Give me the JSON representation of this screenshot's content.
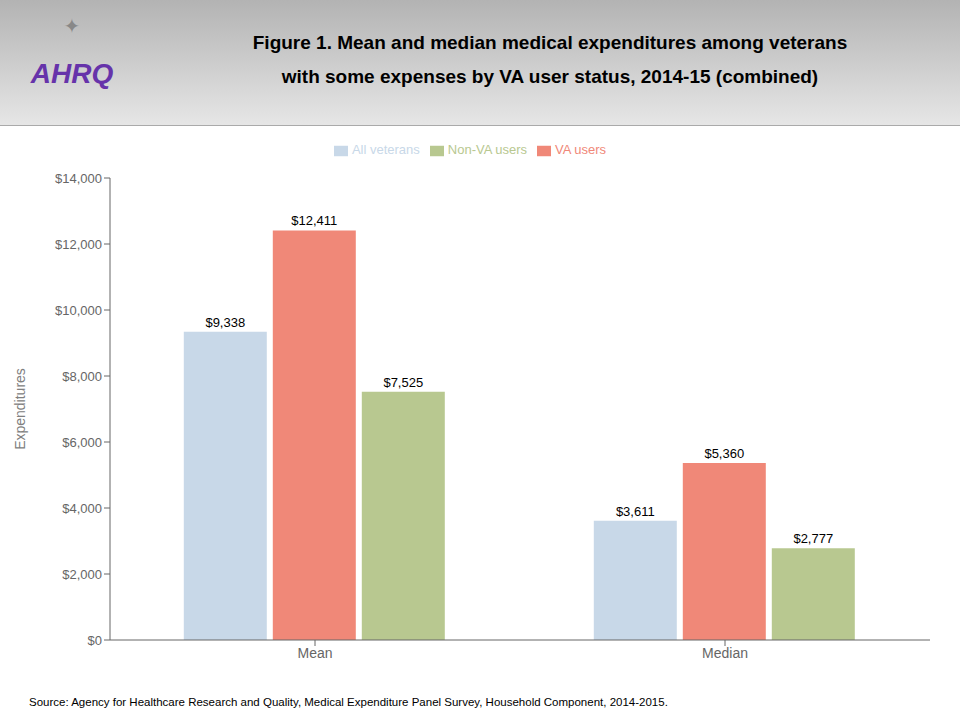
{
  "chart_data": {
    "type": "bar",
    "title": "Figure 1. Mean and median medical expenditures among veterans",
    "subtitle": "with some expenses by VA user status, 2014-15 (combined)",
    "categories": [
      "Mean",
      "Median"
    ],
    "series": [
      {
        "name": "All veterans",
        "color": "#c8d8e8",
        "values": [
          9338,
          3611
        ],
        "value_labels": [
          "$9,338",
          "$3,611"
        ]
      },
      {
        "name": "VA users",
        "color": "#f08878",
        "values": [
          12411,
          5360
        ],
        "value_labels": [
          "$12,411",
          "$5,360"
        ]
      },
      {
        "name": "Non-VA users",
        "color": "#b8c890",
        "values": [
          7525,
          2777
        ],
        "value_labels": [
          "$7,525",
          "$2,777"
        ]
      }
    ],
    "y_label": "Expenditures",
    "ylim": [
      0,
      14000
    ],
    "yticks": [
      {
        "value": 0,
        "label": "$0"
      },
      {
        "value": 2000,
        "label": "$2,000"
      },
      {
        "value": 4000,
        "label": "$4,000"
      },
      {
        "value": 6000,
        "label": "$6,000"
      },
      {
        "value": 8000,
        "label": "$8,000"
      },
      {
        "value": 10000,
        "label": "$10,000"
      },
      {
        "value": 12000,
        "label": "$12,000"
      },
      {
        "value": 14000,
        "label": "$14,000"
      }
    ],
    "data_labels": true,
    "legend": "top",
    "grid": false,
    "annotations": [
      "AHRQ",
      "✦",
      "Source: Agency for Healthcare Research and Quality, Medical Expenditure Panel Survey, Household Component, 2014-2015."
    ]
  }
}
